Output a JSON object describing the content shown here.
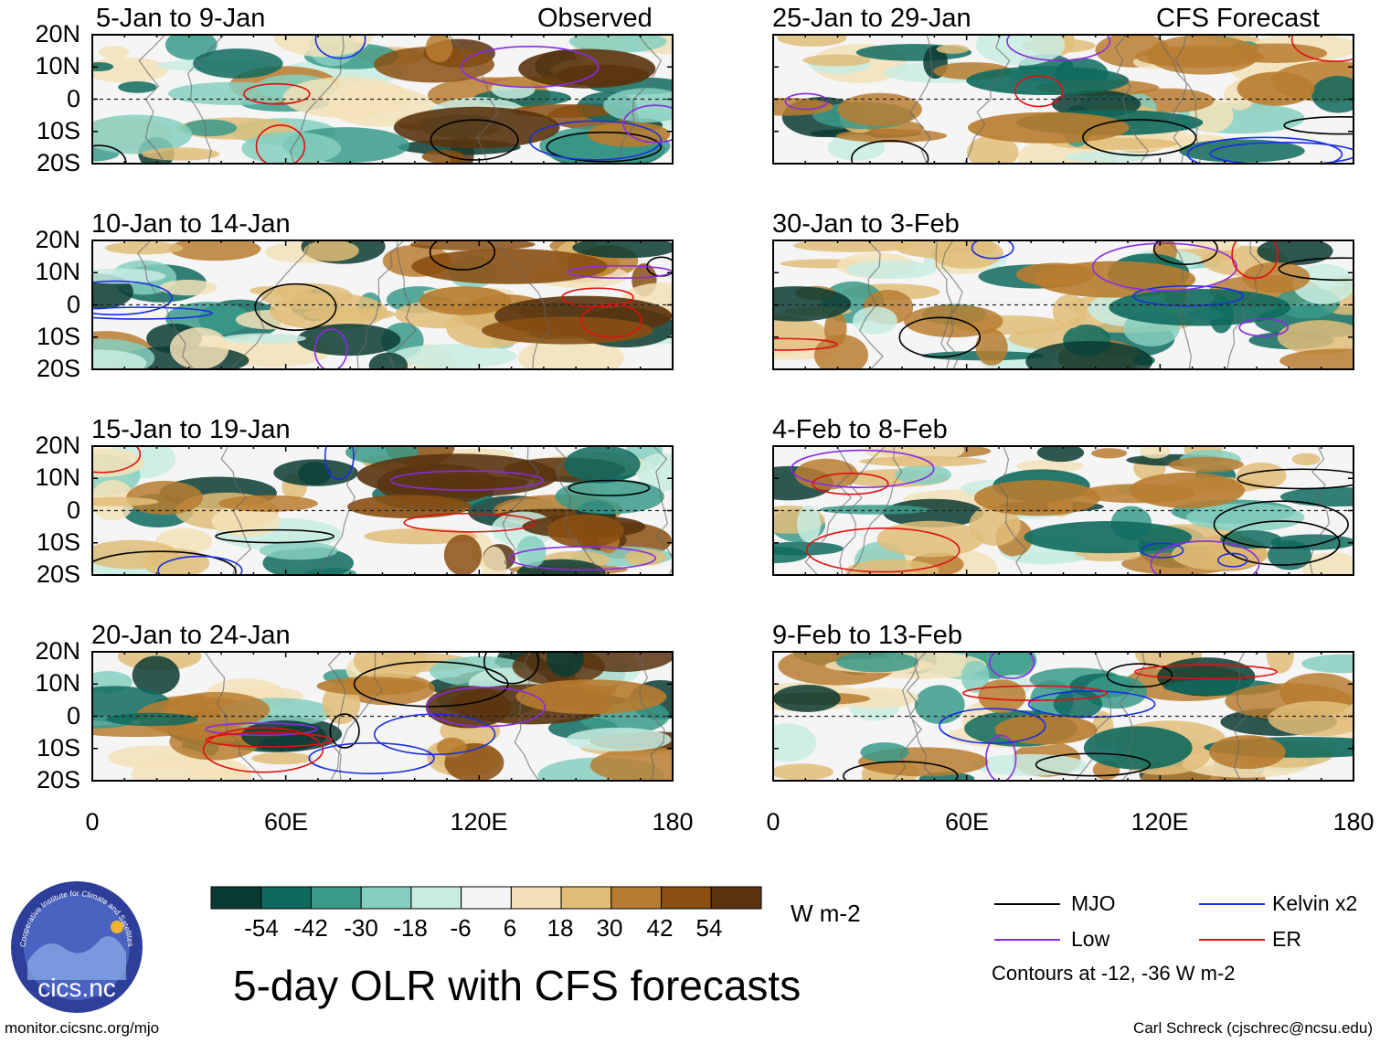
{
  "chart_data": {
    "type": "heatmap",
    "title": "5-day OLR with CFS forecasts",
    "colorbar": {
      "units": "W m-2",
      "labels": [
        "-54",
        "-42",
        "-30",
        "-18",
        "-6",
        "6",
        "18",
        "30",
        "42",
        "54"
      ],
      "colors": [
        "#0a3b33",
        "#0f6a5e",
        "#3a9a8a",
        "#86cfc0",
        "#c8ece2",
        "#f5f5f5",
        "#f3e2b9",
        "#e0bd79",
        "#b87c30",
        "#8a4f12",
        "#5a3410"
      ]
    },
    "y_ticks": [
      "20N",
      "10N",
      "0",
      "10S",
      "20S"
    ],
    "x_ticks": [
      "0",
      "60E",
      "120E",
      "180"
    ],
    "lat_range": [
      -20,
      20
    ],
    "lon_range": [
      0,
      180
    ],
    "columns": [
      {
        "label": "Observed",
        "panels": [
          "5-Jan to 9-Jan",
          "10-Jan to 14-Jan",
          "15-Jan to 19-Jan",
          "20-Jan to 24-Jan"
        ]
      },
      {
        "label": "CFS Forecast",
        "panels": [
          "25-Jan to 29-Jan",
          "30-Jan to 3-Feb",
          "4-Feb to 8-Feb",
          "9-Feb to 13-Feb"
        ]
      }
    ],
    "legend": [
      {
        "name": "MJO",
        "color": "#000000"
      },
      {
        "name": "Kelvin x2",
        "color": "#1a2ee0"
      },
      {
        "name": "Low",
        "color": "#8a2be2"
      },
      {
        "name": "ER",
        "color": "#e01010"
      }
    ],
    "contour_note": "Contours at -12, -36 W m-2"
  },
  "logo": {
    "text": "cics.nc",
    "ring_text": "Cooperative Institute for Climate and Satellites"
  },
  "footer": {
    "left": "monitor.cicsnc.org/mjo",
    "right": "Carl Schreck (cjschrec@ncsu.edu)"
  }
}
